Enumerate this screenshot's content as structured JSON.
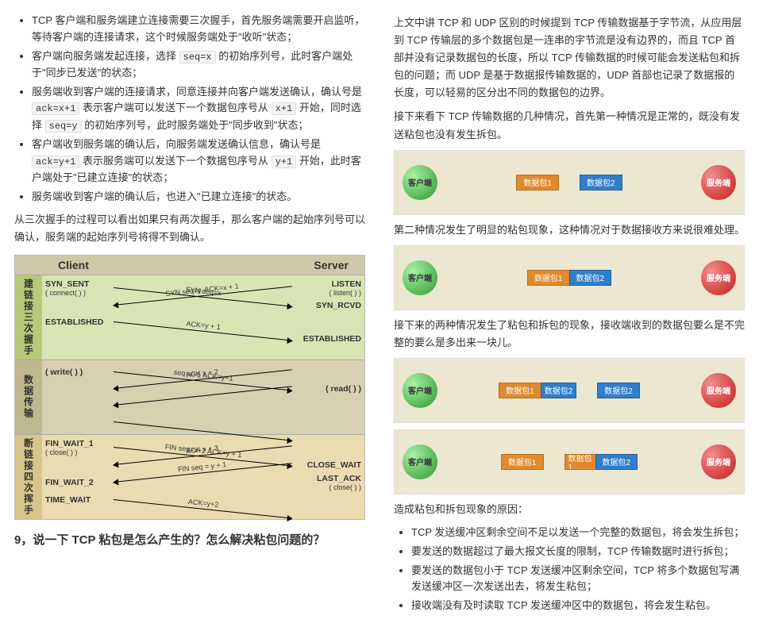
{
  "left": {
    "bullets1": [
      "TCP 客户端和服务端建立连接需要三次握手，首先服务端需要开启监听，等待客户端的连接请求，这个时候服务端处于\"收听\"状态；",
      "客户端向服务端发起连接，选择 seq=x 的初始序列号，此时客户端处于\"同步已发送\"的状态；",
      "服务端收到客户端的连接请求，同意连接并向客户端发送确认，确认号是 ack=x+1 表示客户端可以发送下一个数据包序号从 x+1 开始，同时选择 seq=y 的初始序列号，此时服务端处于\"同步收到\"状态；",
      "客户端收到服务端的确认后，向服务端发送确认信息，确认号是 ack=y+1 表示服务端可以发送下一个数据包序号从 y+1 开始，此时客户端处于\"已建立连接\"的状态；",
      "服务端收到客户端的确认后，也进入\"已建立连接\"的状态。"
    ],
    "para1": "从三次握手的过程可以看出如果只有两次握手，那么客户端的起始序列号可以确认，服务端的起始序列号将得不到确认。",
    "diagram": {
      "client_header": "Client",
      "server_header": "Server",
      "phases": [
        {
          "label": "建链接三次握手",
          "bg": "#d9e4b5",
          "side_bg": "#b8ca7a",
          "rows": [
            {
              "l": "SYN_SENT",
              "lsub": "( connect( ) )",
              "arrow": "SYN seq=x",
              "dir": "r",
              "slant": "down",
              "r": "LISTEN",
              "rsub": "( listen( ) )"
            },
            {
              "l": "",
              "arrow": "SYN seq=y, ACK=x + 1",
              "dir": "l",
              "slant": "up",
              "r": "SYN_RCVD"
            },
            {
              "l": "ESTABLISHED",
              "arrow": "ACK=y + 1",
              "dir": "r",
              "slant": "down",
              "r": ""
            },
            {
              "l": "",
              "arrow": "",
              "dir": "",
              "r": "ESTABLISHED"
            }
          ]
        },
        {
          "label": "数据传输",
          "bg": "#d7d1b2",
          "side_bg": "#bfb88f",
          "rows": [
            {
              "l": "( write( ) )",
              "arrow": "seq=x+1 ACK=y+1",
              "dir": "r",
              "slant": "down",
              "r": ""
            },
            {
              "l": "",
              "arrow": "ACK x + 2",
              "dir": "l",
              "slant": "up",
              "r": "( read( ) )"
            },
            {
              "l": "",
              "arrow": "",
              "dir": "l",
              "slant": "up",
              "r": ""
            },
            {
              "l": "",
              "arrow": "",
              "dir": "r",
              "slant": "down",
              "r": ""
            }
          ]
        },
        {
          "label": "断链接四次挥手",
          "bg": "#eadbb0",
          "side_bg": "#d8c58a",
          "rows": [
            {
              "l": "FIN_WAIT_1",
              "lsub": "( close( ) )",
              "arrow": "FIN seq=x+2 ACK=y + 1",
              "dir": "r",
              "slant": "down",
              "r": ""
            },
            {
              "l": "",
              "arrow": "ACK x + 3",
              "dir": "l",
              "slant": "up",
              "r": "CLOSE_WAIT"
            },
            {
              "l": "FIN_WAIT_2",
              "arrow": "FIN seq = y + 1",
              "dir": "l",
              "slant": "up",
              "r": "LAST_ACK",
              "rsub": "( close( ) )"
            },
            {
              "l": "TIME_WAIT",
              "arrow": "ACK=y+2",
              "dir": "r",
              "slant": "down",
              "r": ""
            }
          ]
        }
      ]
    },
    "heading": "9，说一下 TCP 粘包是怎么产生的？怎么解决粘包问题的？"
  },
  "right": {
    "para1": "上文中讲 TCP 和 UDP 区别的时候提到 TCP 传输数据基于字节流，从应用层到 TCP 传输层的多个数据包是一连串的字节流是没有边界的，而且 TCP 首部并没有记录数据包的长度，所以 TCP 传输数据的时候可能会发送粘包和拆包的问题；而 UDP 是基于数据报传输数据的，UDP 首部也记录了数据报的长度，可以轻易的区分出不同的数据包的边界。",
    "para2": "接下来看下 TCP 传输数据的几种情况，首先第一种情况是正常的，既没有发送粘包也没有发生拆包。",
    "para3": "第二种情况发生了明显的粘包现象，这种情况对于数据接收方来说很难处理。",
    "para4": "接下来的两种情况发生了粘包和拆包的现象，接收端收到的数据包要么是不完整的要么是多出来一块儿。",
    "para5": "造成粘包和拆包现象的原因：",
    "client_label": "客户端",
    "server_label": "服务端",
    "pkt1": "数据包1",
    "pkt2": "数据包2",
    "bullets_causes": [
      "TCP 发送缓冲区剩余空间不足以发送一个完整的数据包，将会发生拆包；",
      "要发送的数据超过了最大报文长度的限制，TCP 传输数据时进行拆包；",
      "要发送的数据包小于 TCP 发送缓冲区剩余空间，TCP 将多个数据包写满发送缓冲区一次发送出去，将发生粘包；",
      "接收端没有及时读取 TCP 发送缓冲区中的数据包，将会发生粘包。"
    ]
  }
}
